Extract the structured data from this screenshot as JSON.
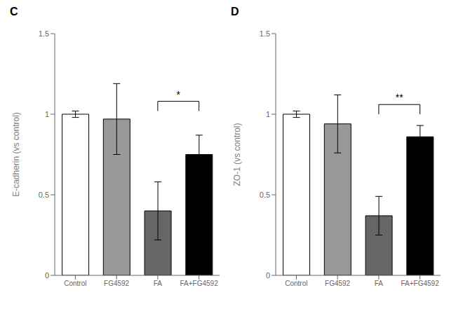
{
  "chart_data": [
    {
      "type": "bar",
      "title": "C",
      "y_label": "E-cadherin (vs control)",
      "categories": [
        "Control",
        "FG4592",
        "FA",
        "FA+FG4592"
      ],
      "values": [
        1.0,
        0.97,
        0.4,
        0.75
      ],
      "errors": [
        0.02,
        0.22,
        0.18,
        0.12
      ],
      "colors": [
        "white",
        "#999999",
        "#666666",
        "black"
      ],
      "ylim": [
        0.0,
        1.5
      ],
      "yticks": [
        0.0,
        0.5,
        1.0,
        1.5
      ],
      "grid": false,
      "annotations": [
        {
          "text": "*",
          "x": [
            "FA",
            "FA+FG4592"
          ],
          "y": 1.08
        }
      ]
    },
    {
      "type": "bar",
      "title": "D",
      "y_label": "ZO-1 (vs control)",
      "categories": [
        "Control",
        "FG4592",
        "FA",
        "FA+FG4592"
      ],
      "values": [
        1.0,
        0.94,
        0.37,
        0.86
      ],
      "errors": [
        0.02,
        0.18,
        0.12,
        0.07
      ],
      "colors": [
        "white",
        "#999999",
        "#666666",
        "black"
      ],
      "ylim": [
        0.0,
        1.5
      ],
      "yticks": [
        0.0,
        0.5,
        1.0,
        1.5
      ],
      "grid": false,
      "annotations": [
        {
          "text": "**",
          "x": [
            "FA",
            "FA+FG4592"
          ],
          "y": 1.06
        }
      ]
    }
  ]
}
